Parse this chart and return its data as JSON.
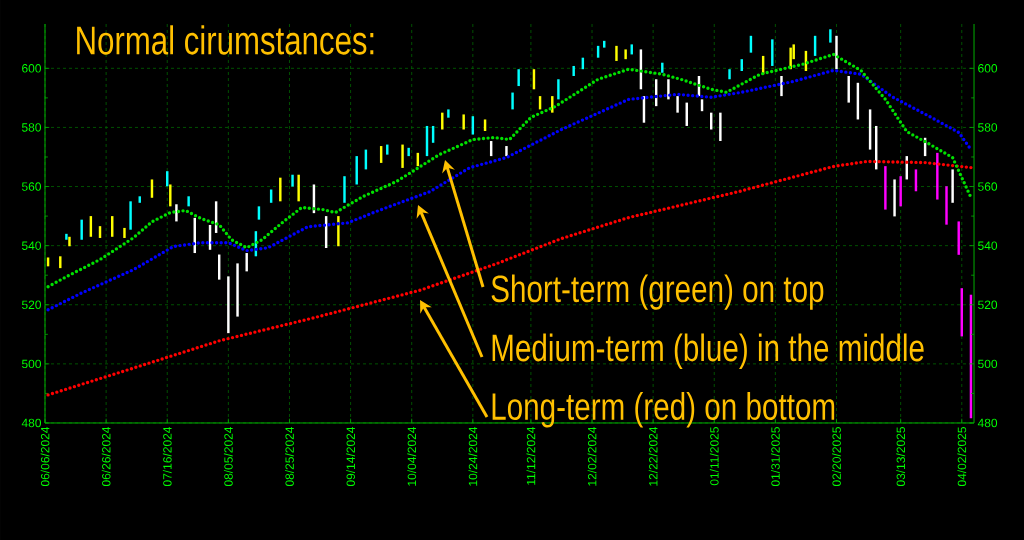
{
  "chart_data": {
    "type": "line",
    "title": "Normal cirumstances:",
    "annotations": [
      "Short-term (green) on top",
      "Medium-term (blue) in the middle",
      "Long-term (red) on bottom"
    ],
    "xlim": [
      "2024-06-06",
      "2025-04-06"
    ],
    "xticks": [
      {
        "value": "2024-06-06",
        "label": "06/06/2024"
      },
      {
        "value": "2024-06-26",
        "label": "06/26/2024"
      },
      {
        "value": "2024-07-16",
        "label": "07/16/2024"
      },
      {
        "value": "2024-08-05",
        "label": "08/05/2024"
      },
      {
        "value": "2024-08-25",
        "label": "08/25/2024"
      },
      {
        "value": "2024-09-14",
        "label": "09/14/2024"
      },
      {
        "value": "2024-10-04",
        "label": "10/04/2024"
      },
      {
        "value": "2024-10-24",
        "label": "10/24/2024"
      },
      {
        "value": "2024-11-12",
        "label": "11/12/2024"
      },
      {
        "value": "2024-12-02",
        "label": "12/02/2024"
      },
      {
        "value": "2024-12-22",
        "label": "12/22/2024"
      },
      {
        "value": "2025-01-11",
        "label": "01/11/2025"
      },
      {
        "value": "2025-01-31",
        "label": "01/31/2025"
      },
      {
        "value": "2025-02-20",
        "label": "02/20/2025"
      },
      {
        "value": "2025-03-13",
        "label": "03/13/2025"
      },
      {
        "value": "2025-04-02",
        "label": "04/02/2025"
      }
    ],
    "ylim": [
      480,
      615
    ],
    "yticks": [
      480,
      500,
      520,
      540,
      560,
      580,
      600
    ],
    "y2lim": [
      480,
      615
    ],
    "y2ticks": [
      480,
      500,
      520,
      540,
      560,
      580,
      600
    ],
    "grid": true,
    "series": [
      {
        "type": "bar",
        "x": [
          "2024-06-07",
          "2024-06-11",
          "2024-06-13",
          "2024-06-14",
          "2024-06-18",
          "2024-06-21",
          "2024-06-24",
          "2024-06-28",
          "2024-07-02",
          "2024-07-04",
          "2024-07-07",
          "2024-07-11",
          "2024-07-16",
          "2024-07-17",
          "2024-07-19",
          "2024-07-23",
          "2024-07-25",
          "2024-07-30",
          "2024-08-01",
          "2024-08-02",
          "2024-08-05",
          "2024-08-08",
          "2024-08-11",
          "2024-08-14",
          "2024-08-15",
          "2024-08-19",
          "2024-08-22",
          "2024-08-26",
          "2024-08-28",
          "2024-09-02",
          "2024-09-06",
          "2024-09-10",
          "2024-09-12",
          "2024-09-16",
          "2024-09-19",
          "2024-09-24",
          "2024-09-26",
          "2024-10-01",
          "2024-10-03",
          "2024-10-06",
          "2024-10-09",
          "2024-10-11",
          "2024-10-14",
          "2024-10-16",
          "2024-10-21",
          "2024-10-24",
          "2024-10-28",
          "2024-10-30",
          "2024-11-04",
          "2024-11-06",
          "2024-11-08",
          "2024-11-13",
          "2024-11-15",
          "2024-11-19",
          "2024-11-21",
          "2024-11-26",
          "2024-11-29",
          "2024-12-04",
          "2024-12-06",
          "2024-12-10",
          "2024-12-13",
          "2024-12-15",
          "2024-12-18",
          "2024-12-19",
          "2024-12-23",
          "2024-12-25",
          "2024-12-27",
          "2024-12-30",
          "2025-01-02",
          "2025-01-06",
          "2025-01-07",
          "2025-01-10",
          "2025-01-13",
          "2025-01-16",
          "2025-01-20",
          "2025-01-23",
          "2025-01-27",
          "2025-01-30",
          "2025-02-02",
          "2025-02-05",
          "2025-02-06",
          "2025-02-10",
          "2025-02-13",
          "2025-02-18",
          "2025-02-20",
          "2025-02-24",
          "2025-02-27",
          "2025-03-03",
          "2025-03-05",
          "2025-03-08",
          "2025-03-11",
          "2025-03-13",
          "2025-03-15",
          "2025-03-18",
          "2025-03-21",
          "2025-03-25",
          "2025-03-28",
          "2025-03-30",
          "2025-04-01",
          "2025-04-02",
          "2025-04-05"
        ],
        "base": [
          533,
          532.4,
          542,
          539.8,
          542,
          543,
          542.6,
          543,
          542.6,
          545.4,
          554.5,
          556.2,
          560.1,
          553.3,
          548.2,
          553.3,
          537.5,
          538.6,
          544.3,
          528.5,
          510.4,
          516,
          531.3,
          536.4,
          548.8,
          554.5,
          555,
          560,
          555,
          551,
          539.2,
          539.8,
          554.5,
          560.7,
          565.8,
          568,
          570.8,
          566.3,
          570.3,
          566.9,
          570.3,
          574.8,
          579.3,
          583.3,
          579.3,
          577.6,
          578.8,
          570.3,
          570.3,
          586.1,
          594,
          592.9,
          586.1,
          585,
          589.5,
          597.4,
          599.7,
          603.6,
          607,
          602.5,
          603.1,
          604.7,
          592.9,
          581.6,
          587.2,
          598.5,
          589.5,
          585,
          580.5,
          590.6,
          585.5,
          579.3,
          575.4,
          596.3,
          599.1,
          605.3,
          598,
          600.8,
          590.6,
          599.7,
          603.1,
          599.1,
          604.2,
          608.7,
          599.7,
          588.4,
          582.7,
          572.5,
          565.8,
          552.2,
          549.9,
          553.3,
          562.4,
          558.4,
          570.3,
          555.6,
          547.1,
          554.5,
          536.9,
          509.3,
          481.6
        ],
        "values": [
          3,
          4,
          2,
          3.2,
          6.8,
          7,
          4,
          7,
          3.4,
          9.6,
          2.2,
          6.2,
          5.1,
          7.4,
          5.8,
          3.4,
          11.9,
          8.4,
          10.7,
          8.5,
          19.2,
          18,
          6.2,
          8.5,
          4.5,
          4.5,
          8,
          4,
          9,
          9.7,
          10.8,
          10.2,
          9,
          9.6,
          6.7,
          5.7,
          3.4,
          7.9,
          2.8,
          4.5,
          10.2,
          5.7,
          5.7,
          2.8,
          5.1,
          6.2,
          3.9,
          5.1,
          3.4,
          5.7,
          5.7,
          6.8,
          4.5,
          5.6,
          6.8,
          3.4,
          3.9,
          4,
          2.3,
          5.1,
          3.3,
          3.4,
          13.5,
          9,
          9.1,
          3.4,
          6.8,
          5.6,
          7.9,
          6.8,
          4,
          5.7,
          9.6,
          3.4,
          4,
          5.7,
          6.2,
          9,
          6.8,
          7.3,
          5,
          6.8,
          6.8,
          4.5,
          11.3,
          9,
          12.4,
          13.6,
          14.7,
          14.7,
          12.5,
          10.2,
          7.9,
          7.4,
          6.2,
          15.8,
          13,
          11.3,
          11.3,
          16.3,
          41.8
        ],
        "colors": [
          "#ffff00",
          "#ffff00",
          "#00ffff",
          "#ffff00",
          "#00ffff",
          "#ffff00",
          "#ffff00",
          "#ffff00",
          "#ffff00",
          "#00ffff",
          "#00ffff",
          "#ffff00",
          "#00ffff",
          "#ffff00",
          "#ffffff",
          "#00ffff",
          "#ffffff",
          "#ffffff",
          "#ffffff",
          "#ffffff",
          "#ffffff",
          "#ffffff",
          "#ffffff",
          "#00ffff",
          "#00ffff",
          "#00ffff",
          "#ffff00",
          "#00ffff",
          "#ffff00",
          "#ffffff",
          "#ffffff",
          "#ffff00",
          "#00ffff",
          "#00ffff",
          "#00ffff",
          "#ffff00",
          "#00ffff",
          "#ffff00",
          "#00ffff",
          "#ffff00",
          "#00ffff",
          "#00ffff",
          "#ffff00",
          "#00ffff",
          "#ffff00",
          "#00ffff",
          "#ffff00",
          "#ffffff",
          "#ffffff",
          "#00ffff",
          "#00ffff",
          "#ffff00",
          "#ffff00",
          "#ffff00",
          "#00ffff",
          "#00ffff",
          "#00ffff",
          "#00ffff",
          "#00ffff",
          "#ffff00",
          "#ffff00",
          "#00ffff",
          "#ffffff",
          "#ffffff",
          "#ffffff",
          "#00ffff",
          "#ffffff",
          "#ffffff",
          "#ffffff",
          "#ffffff",
          "#ffffff",
          "#ffffff",
          "#ffffff",
          "#00ffff",
          "#00ffff",
          "#00ffff",
          "#ffff00",
          "#00ffff",
          "#ffffff",
          "#ffff00",
          "#ffff00",
          "#ffff00",
          "#00ffff",
          "#00ffff",
          "#ffffff",
          "#ffffff",
          "#ffffff",
          "#ffffff",
          "#ffffff",
          "#ff00ff",
          "#ffffff",
          "#ff00ff",
          "#ffffff",
          "#ff00ff",
          "#ffffff",
          "#ff00ff",
          "#ff00ff",
          "#ffffff",
          "#ff00ff",
          "#ff00ff",
          "#ff00ff"
        ]
      },
      {
        "color": "#ff0000",
        "line_style": "dotted",
        "x": [
          "2024-06-07",
          "2024-07-05",
          "2024-08-02",
          "2024-09-02",
          "2024-10-07",
          "2024-11-01",
          "2024-11-22",
          "2024-12-14",
          "2025-01-19",
          "2025-02-19",
          "2025-03-02",
          "2025-03-21",
          "2025-04-05"
        ],
        "values": [
          489.5,
          498.6,
          507.8,
          515.6,
          525,
          534,
          542.4,
          549.5,
          558.3,
          566.8,
          568.5,
          568.1,
          566.4
        ]
      },
      {
        "color": "#0000ff",
        "line_style": "dotted",
        "x": [
          "2024-06-07",
          "2024-06-18",
          "2024-07-05",
          "2024-07-18",
          "2024-07-27",
          "2024-08-05",
          "2024-08-11",
          "2024-08-18",
          "2024-08-31",
          "2024-09-13",
          "2024-09-24",
          "2024-10-10",
          "2024-10-23",
          "2024-11-04",
          "2024-11-22",
          "2024-12-14",
          "2024-12-30",
          "2025-01-10",
          "2025-01-20",
          "2025-02-06",
          "2025-02-19",
          "2025-02-28",
          "2025-03-10",
          "2025-03-23",
          "2025-04-01",
          "2025-04-05"
        ],
        "values": [
          518.3,
          524,
          531.9,
          539.7,
          541,
          541,
          538.3,
          539.3,
          546.4,
          547.7,
          552.2,
          558.3,
          566.4,
          569.8,
          579.3,
          589.5,
          591.2,
          590.2,
          591.9,
          595.6,
          599.3,
          598,
          590.5,
          583.4,
          578.3,
          572.5
        ]
      },
      {
        "color": "#00e000",
        "line_style": "dotted",
        "x": [
          "2024-06-07",
          "2024-06-13",
          "2024-06-24",
          "2024-07-05",
          "2024-07-11",
          "2024-07-17",
          "2024-07-22",
          "2024-07-27",
          "2024-08-02",
          "2024-08-06",
          "2024-08-11",
          "2024-08-16",
          "2024-08-23",
          "2024-08-29",
          "2024-09-05",
          "2024-09-09",
          "2024-09-18",
          "2024-09-29",
          "2024-10-13",
          "2024-10-24",
          "2024-10-31",
          "2024-11-05",
          "2024-11-12",
          "2024-11-20",
          "2024-12-04",
          "2024-12-14",
          "2024-12-25",
          "2024-12-31",
          "2025-01-10",
          "2025-01-15",
          "2025-01-26",
          "2025-02-09",
          "2025-02-19",
          "2025-02-28",
          "2025-03-08",
          "2025-03-15",
          "2025-03-22",
          "2025-03-30",
          "2025-04-05"
        ],
        "values": [
          526.1,
          529.5,
          535.3,
          542.7,
          548.1,
          551.2,
          551.9,
          549.2,
          547.1,
          542,
          539.3,
          542,
          548.1,
          552.9,
          552.2,
          551.2,
          556.6,
          561.7,
          570.8,
          575.9,
          576.6,
          575.9,
          583.4,
          587.1,
          596.3,
          599.7,
          598,
          596.3,
          592.9,
          591.9,
          598,
          601.4,
          604.7,
          599.3,
          589.5,
          578.6,
          574.6,
          569.8,
          556.3
        ]
      }
    ]
  }
}
